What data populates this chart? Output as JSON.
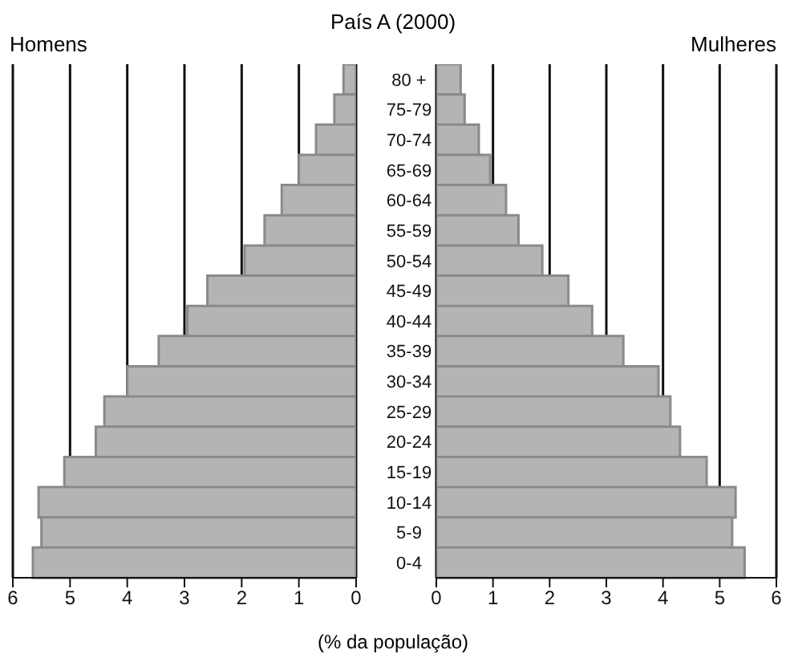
{
  "chart_data": [
    {
      "type": "bar",
      "orientation": "horizontal",
      "title": "País A (2000)",
      "categories": [
        "80 +",
        "75-79",
        "70-74",
        "65-69",
        "60-64",
        "55-59",
        "50-54",
        "45-49",
        "40-44",
        "35-39",
        "30-34",
        "25-29",
        "20-24",
        "15-19",
        "10-14",
        "5-9",
        "0-4"
      ],
      "series": [
        {
          "name": "Homens",
          "color": "#b4b4b4",
          "values": [
            0.22,
            0.38,
            0.7,
            1.0,
            1.3,
            1.6,
            1.95,
            2.6,
            2.95,
            3.45,
            4.0,
            4.4,
            4.55,
            5.1,
            5.55,
            5.5,
            5.65
          ]
        }
      ],
      "xlim": [
        6,
        0
      ],
      "xticks": [
        6,
        5,
        4,
        3,
        2,
        1,
        0
      ],
      "grid": "x"
    },
    {
      "type": "bar",
      "orientation": "horizontal",
      "xlabel": "(% da população)",
      "categories": [
        null,
        null,
        null,
        null,
        null,
        null,
        null,
        null,
        null,
        null,
        null,
        null,
        null,
        null,
        null,
        null,
        null
      ],
      "series": [
        {
          "name": "Mulheres",
          "color": "#b4b4b4",
          "values": [
            0.43,
            0.5,
            0.75,
            0.95,
            1.23,
            1.45,
            1.87,
            2.33,
            2.75,
            3.3,
            3.92,
            4.13,
            4.3,
            4.77,
            5.28,
            5.22,
            5.44
          ]
        }
      ],
      "xlim": [
        0,
        6
      ],
      "xticks": [
        0,
        1,
        2,
        3,
        4,
        5,
        6
      ],
      "grid": "x",
      "tick_labels": "x"
    }
  ]
}
